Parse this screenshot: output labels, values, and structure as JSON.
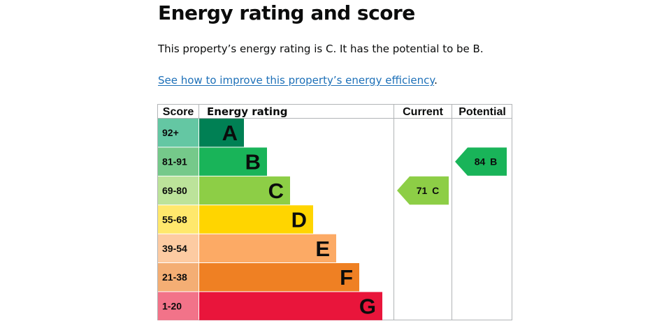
{
  "heading": "Energy rating and score",
  "summary": "This property’s energy rating is C. It has the potential to be B.",
  "improve_link": "See how to improve this property’s energy efficiency",
  "improve_suffix": ".",
  "chart_data": {
    "type": "bar",
    "columns": [
      "Score",
      "Energy rating",
      "Current",
      "Potential"
    ],
    "bands": [
      {
        "score": "92+",
        "letter": "A",
        "color": "#008054",
        "score_color": "#64c7a3"
      },
      {
        "score": "81-91",
        "letter": "B",
        "color": "#19b459",
        "score_color": "#75c98a"
      },
      {
        "score": "69-80",
        "letter": "C",
        "color": "#8dce46",
        "score_color": "#bce39a"
      },
      {
        "score": "55-68",
        "letter": "D",
        "color": "#ffd500",
        "score_color": "#ffe86c"
      },
      {
        "score": "39-54",
        "letter": "E",
        "color": "#fcaa65",
        "score_color": "#fdcba2"
      },
      {
        "score": "21-38",
        "letter": "F",
        "color": "#ef8023",
        "score_color": "#f4ae74"
      },
      {
        "score": "1-20",
        "letter": "G",
        "color": "#e9153b",
        "score_color": "#f27389"
      }
    ],
    "current": {
      "value": 71,
      "band": "C",
      "label": "71 C",
      "color": "#8dce46"
    },
    "potential": {
      "value": 84,
      "band": "B",
      "label": "84 B",
      "color": "#19b459"
    }
  }
}
